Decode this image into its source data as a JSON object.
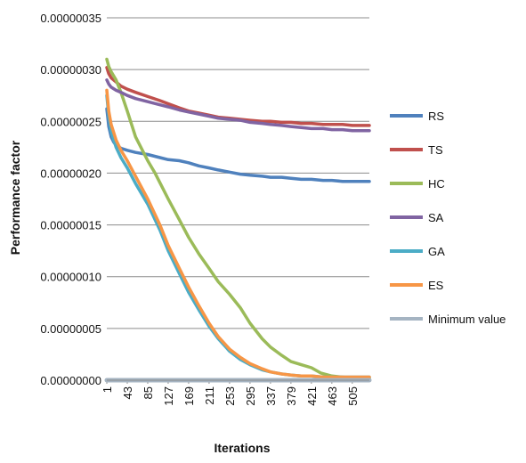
{
  "chart_data": {
    "type": "line",
    "xlabel": "Iterations",
    "ylabel": "Performance factor",
    "xlim": [
      1,
      540
    ],
    "ylim": [
      0,
      3.5e-07
    ],
    "grid": true,
    "legend_position": "right",
    "y_ticks": [
      "0.00000000",
      "0.00000005",
      "0.00000010",
      "0.00000015",
      "0.00000020",
      "0.00000025",
      "0.00000030",
      "0.00000035"
    ],
    "x_ticks": [
      "1",
      "43",
      "85",
      "127",
      "169",
      "211",
      "253",
      "295",
      "337",
      "379",
      "421",
      "463",
      "505"
    ],
    "series": [
      {
        "name": "RS",
        "color": "#4f81bd",
        "x": [
          1,
          5,
          10,
          15,
          20,
          30,
          43,
          60,
          85,
          110,
          127,
          150,
          169,
          190,
          211,
          230,
          253,
          275,
          295,
          320,
          337,
          360,
          379,
          400,
          421,
          445,
          463,
          485,
          505,
          525,
          540
        ],
        "y": [
          2.62e-07,
          2.45e-07,
          2.35e-07,
          2.3e-07,
          2.27e-07,
          2.24e-07,
          2.22e-07,
          2.2e-07,
          2.18e-07,
          2.15e-07,
          2.13e-07,
          2.12e-07,
          2.1e-07,
          2.07e-07,
          2.05e-07,
          2.03e-07,
          2.01e-07,
          1.99e-07,
          1.98e-07,
          1.97e-07,
          1.96e-07,
          1.96e-07,
          1.95e-07,
          1.94e-07,
          1.94e-07,
          1.93e-07,
          1.93e-07,
          1.92e-07,
          1.92e-07,
          1.92e-07,
          1.92e-07
        ]
      },
      {
        "name": "TS",
        "color": "#c0504d",
        "x": [
          1,
          5,
          10,
          20,
          30,
          43,
          60,
          85,
          110,
          127,
          150,
          169,
          190,
          211,
          230,
          253,
          275,
          295,
          320,
          337,
          360,
          379,
          400,
          421,
          445,
          463,
          485,
          505,
          525,
          540
        ],
        "y": [
          3.02e-07,
          2.96e-07,
          2.92e-07,
          2.88e-07,
          2.84e-07,
          2.81e-07,
          2.78e-07,
          2.74e-07,
          2.7e-07,
          2.67e-07,
          2.63e-07,
          2.6e-07,
          2.58e-07,
          2.56e-07,
          2.54e-07,
          2.53e-07,
          2.52e-07,
          2.51e-07,
          2.5e-07,
          2.5e-07,
          2.49e-07,
          2.49e-07,
          2.48e-07,
          2.48e-07,
          2.47e-07,
          2.47e-07,
          2.47e-07,
          2.46e-07,
          2.46e-07,
          2.46e-07
        ]
      },
      {
        "name": "HC",
        "color": "#9bbb59",
        "x": [
          1,
          5,
          10,
          20,
          30,
          43,
          60,
          85,
          100,
          127,
          150,
          169,
          190,
          211,
          230,
          253,
          275,
          295,
          320,
          337,
          360,
          379,
          400,
          421,
          440,
          463,
          485,
          505,
          525,
          540
        ],
        "y": [
          3.1e-07,
          3.03e-07,
          2.98e-07,
          2.9e-07,
          2.78e-07,
          2.6e-07,
          2.35e-07,
          2.12e-07,
          2e-07,
          1.75e-07,
          1.55e-07,
          1.38e-07,
          1.22e-07,
          1.08e-07,
          9.5e-08,
          8.3e-08,
          7e-08,
          5.5e-08,
          4e-08,
          3.2e-08,
          2.4e-08,
          1.8e-08,
          1.5e-08,
          1.2e-08,
          7e-09,
          4e-09,
          3e-09,
          2e-09,
          2e-09,
          2e-09
        ]
      },
      {
        "name": "SA",
        "color": "#8064a2",
        "x": [
          1,
          5,
          10,
          20,
          30,
          43,
          60,
          85,
          110,
          127,
          150,
          169,
          190,
          211,
          230,
          253,
          275,
          295,
          320,
          337,
          360,
          379,
          400,
          421,
          445,
          463,
          485,
          505,
          525,
          540
        ],
        "y": [
          2.9e-07,
          2.86e-07,
          2.83e-07,
          2.8e-07,
          2.78e-07,
          2.75e-07,
          2.72e-07,
          2.69e-07,
          2.66e-07,
          2.64e-07,
          2.61e-07,
          2.59e-07,
          2.57e-07,
          2.55e-07,
          2.53e-07,
          2.52e-07,
          2.51e-07,
          2.49e-07,
          2.48e-07,
          2.47e-07,
          2.46e-07,
          2.45e-07,
          2.44e-07,
          2.43e-07,
          2.43e-07,
          2.42e-07,
          2.42e-07,
          2.41e-07,
          2.41e-07,
          2.41e-07
        ]
      },
      {
        "name": "GA",
        "color": "#4bacc6",
        "x": [
          1,
          5,
          10,
          20,
          30,
          43,
          60,
          85,
          110,
          127,
          150,
          169,
          190,
          211,
          230,
          253,
          275,
          295,
          320,
          337,
          360,
          379,
          400,
          421,
          445,
          463,
          485,
          505,
          525,
          540
        ],
        "y": [
          2.75e-07,
          2.55e-07,
          2.4e-07,
          2.25e-07,
          2.15e-07,
          2.05e-07,
          1.9e-07,
          1.7e-07,
          1.45e-07,
          1.25e-07,
          1.03e-07,
          8.5e-08,
          6.8e-08,
          5.2e-08,
          4e-08,
          2.8e-08,
          2e-08,
          1.5e-08,
          1e-08,
          8e-09,
          6e-09,
          5e-09,
          4e-09,
          4e-09,
          3e-09,
          3e-09,
          3e-09,
          3e-09,
          3e-09,
          3e-09
        ]
      },
      {
        "name": "ES",
        "color": "#f79646",
        "x": [
          1,
          5,
          10,
          20,
          30,
          43,
          60,
          85,
          110,
          127,
          150,
          169,
          190,
          211,
          230,
          253,
          275,
          295,
          320,
          337,
          360,
          379,
          400,
          421,
          445,
          463,
          485,
          505,
          525,
          540
        ],
        "y": [
          2.8e-07,
          2.6e-07,
          2.47e-07,
          2.32e-07,
          2.22e-07,
          2.12e-07,
          1.97e-07,
          1.75e-07,
          1.5e-07,
          1.3e-07,
          1.08e-07,
          9e-08,
          7.2e-08,
          5.5e-08,
          4.2e-08,
          3e-08,
          2.2e-08,
          1.6e-08,
          1.1e-08,
          8e-09,
          6e-09,
          5e-09,
          4e-09,
          4e-09,
          3e-09,
          3e-09,
          3e-09,
          3e-09,
          3e-09,
          3e-09
        ]
      },
      {
        "name": "Minimum value",
        "color": "#a5b4c2",
        "x": [
          1,
          540
        ],
        "y": [
          0.0,
          0.0
        ]
      }
    ]
  }
}
